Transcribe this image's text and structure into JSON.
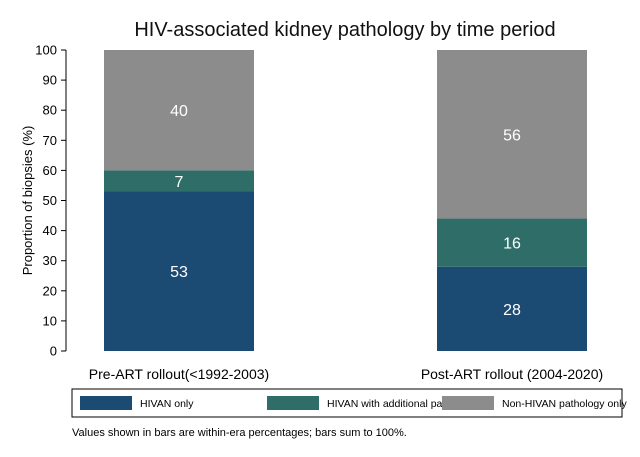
{
  "chart_data": {
    "type": "bar",
    "stacked": true,
    "title": "HIV-associated kidney pathology by time period",
    "xlabel": "",
    "ylabel": "Proportion of biopsies (%)",
    "ylim": [
      0,
      100
    ],
    "yticks": [
      0,
      10,
      20,
      30,
      40,
      50,
      60,
      70,
      80,
      90,
      100
    ],
    "categories": [
      "Pre-ART rollout(<1992-2003)",
      "Post-ART rollout (2004-2020)"
    ],
    "series": [
      {
        "name": "HIVAN only",
        "values": [
          53,
          28
        ],
        "color": "#1b4a72"
      },
      {
        "name": "HIVAN with additional pathology",
        "values": [
          7,
          16
        ],
        "color": "#2f6e68"
      },
      {
        "name": "Non-HIVAN pathology only",
        "values": [
          40,
          56
        ],
        "color": "#8c8c8c"
      }
    ],
    "grid": false,
    "legend_position": "bottom"
  },
  "note": "Values shown in bars are within-era percentages; bars sum to 100%."
}
